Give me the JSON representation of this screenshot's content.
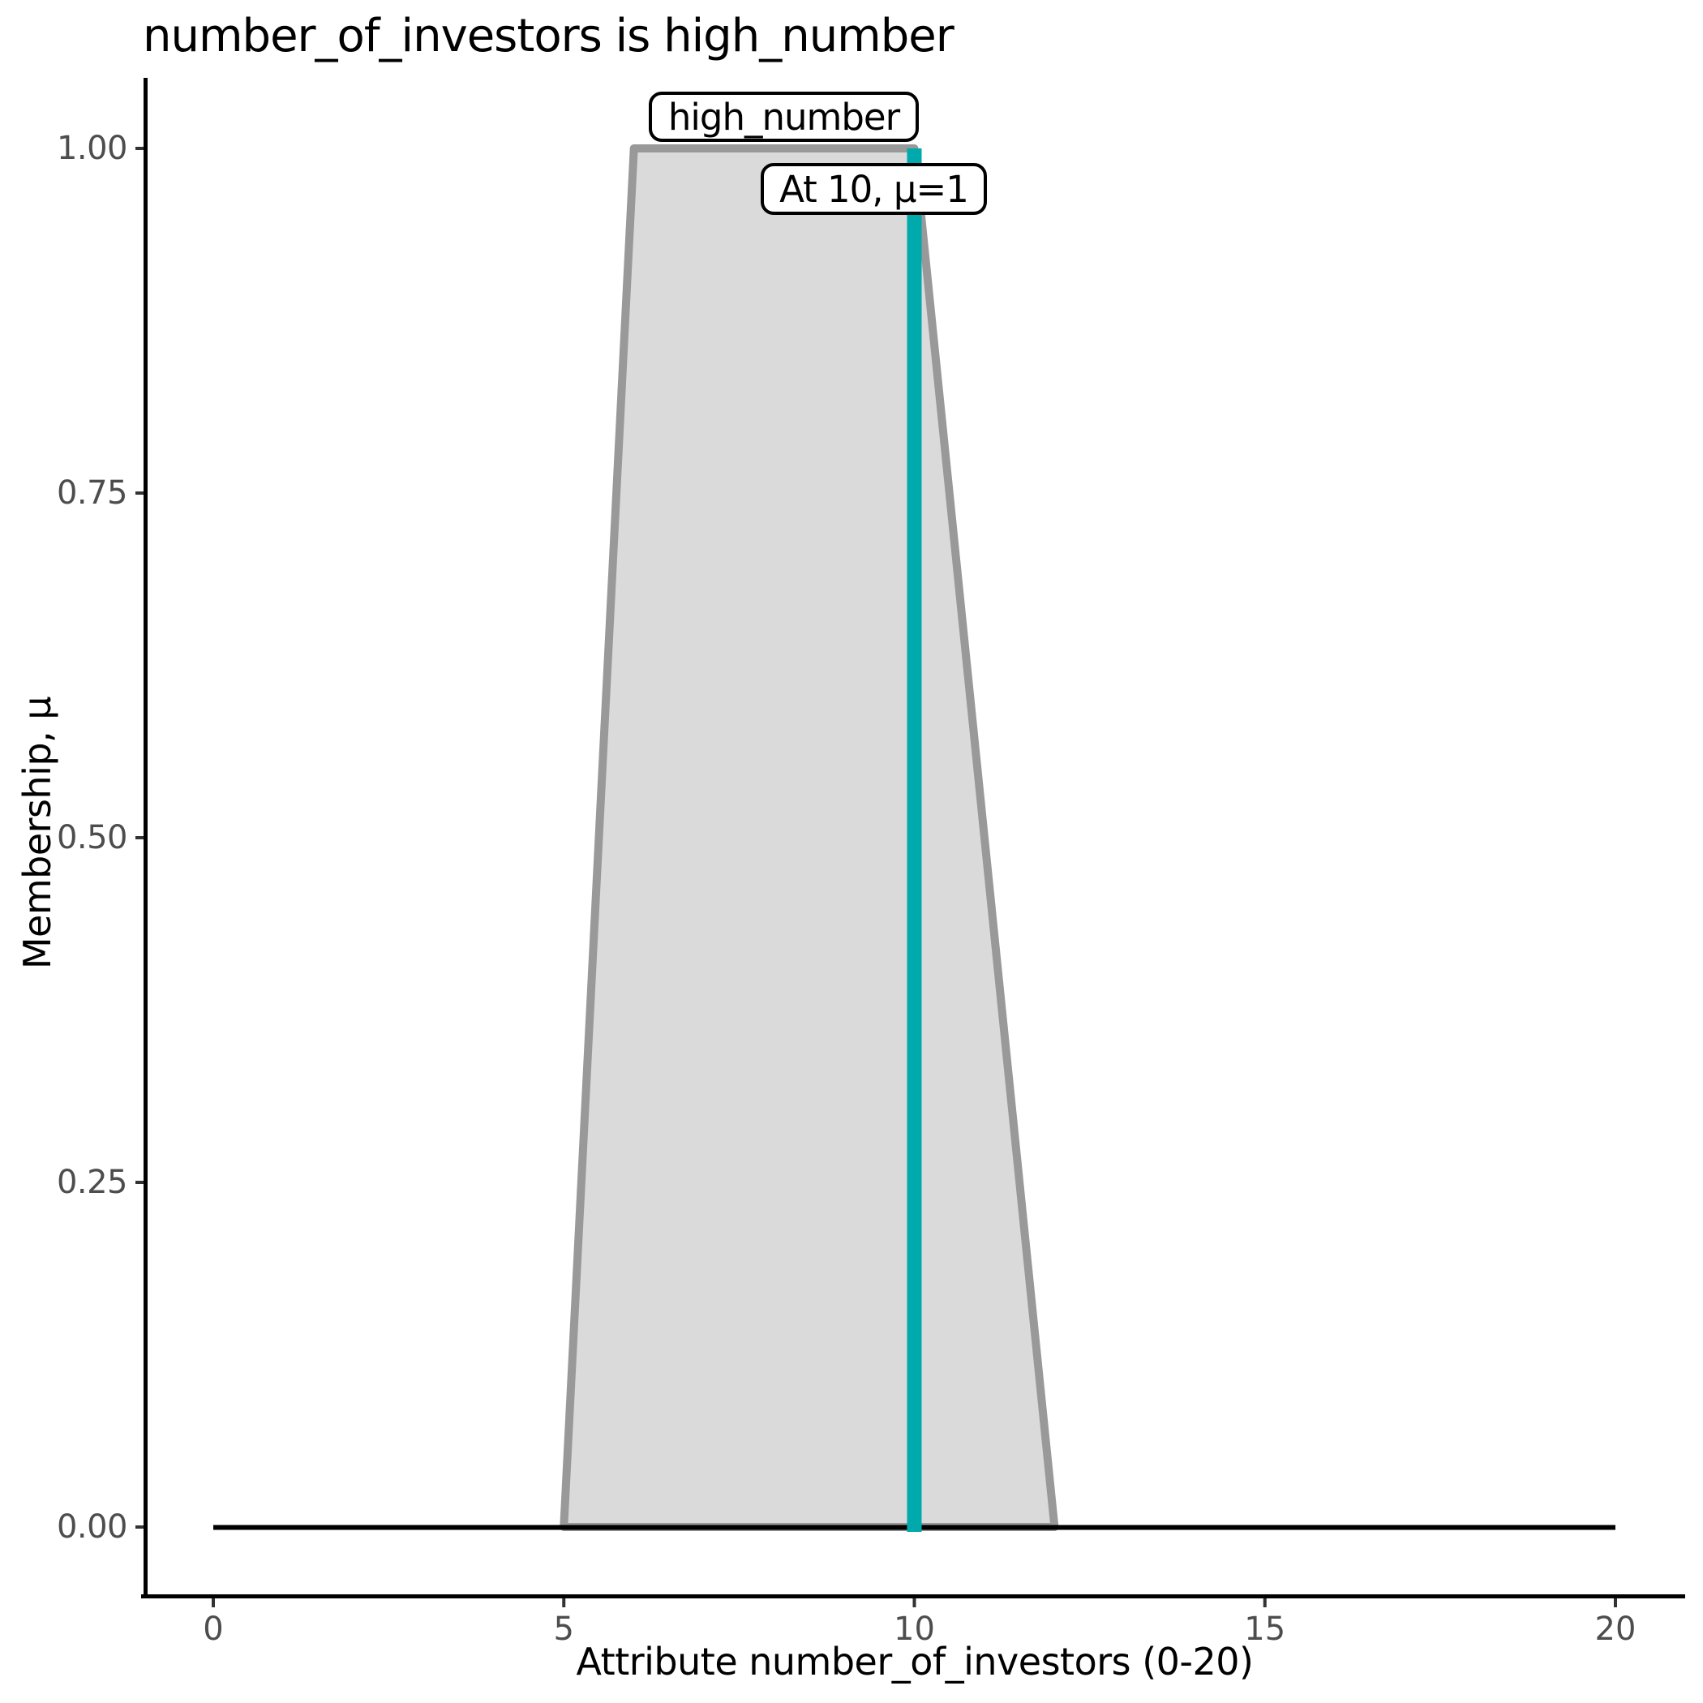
{
  "chart_data": {
    "type": "area",
    "title": "number_of_investors is high_number",
    "xlabel": "Attribute number_of_investors (0-20)",
    "ylabel": "Membership, μ",
    "xlim": [
      0,
      20
    ],
    "ylim": [
      0,
      1
    ],
    "grid": false,
    "legend": "none",
    "x_ticks": [
      {
        "value": 0,
        "label": "0"
      },
      {
        "value": 5,
        "label": "5"
      },
      {
        "value": 10,
        "label": "10"
      },
      {
        "value": 15,
        "label": "15"
      },
      {
        "value": 20,
        "label": "20"
      }
    ],
    "y_ticks": [
      {
        "value": 0.0,
        "label": "0.00"
      },
      {
        "value": 0.25,
        "label": "0.25"
      },
      {
        "value": 0.5,
        "label": "0.50"
      },
      {
        "value": 0.75,
        "label": "0.75"
      },
      {
        "value": 1.0,
        "label": "1.00"
      }
    ],
    "series": [
      {
        "name": "high_number",
        "shape": "trapezoid-membership-function",
        "points": [
          [
            5,
            0
          ],
          [
            6,
            1
          ],
          [
            10,
            1
          ],
          [
            12,
            0
          ]
        ],
        "fill_color": "#DADADA",
        "stroke_color": "#999999"
      }
    ],
    "baseline": {
      "y": 0,
      "x_start": 0,
      "x_end": 20,
      "color": "#000000"
    },
    "marker_line": {
      "x": 10,
      "mu_top": 1,
      "color": "#00AAAC"
    },
    "annotations": [
      {
        "text": "high_number"
      },
      {
        "text": "At 10, μ=1"
      }
    ],
    "colors": {
      "axis_line": "#000000",
      "tick_mark": "#333333",
      "tick_label": "#4d4d4d",
      "title_text": "#000000",
      "background": "#ffffff"
    }
  }
}
